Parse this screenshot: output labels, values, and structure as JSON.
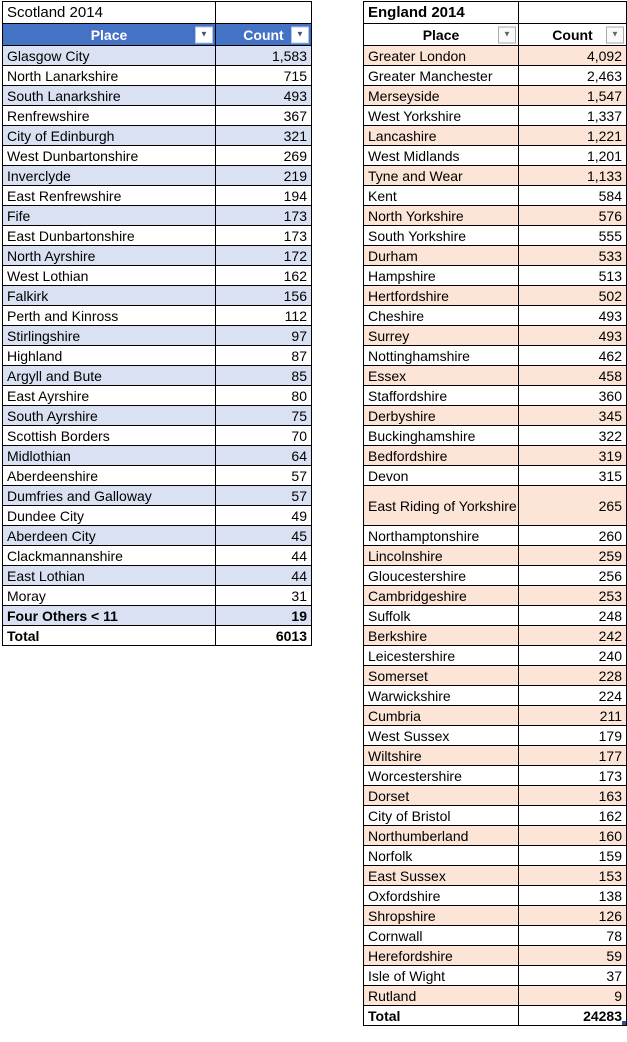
{
  "colors": {
    "scotland_header_bg": "#4472C4",
    "scotland_band": "#D9E1F2",
    "england_band": "#FCE4D6",
    "fill_handle": "#2E5395"
  },
  "icons": {
    "filter_dropdown": "▼"
  },
  "tables": [
    {
      "title": "Scotland 2014",
      "header": {
        "place": "Place",
        "count": "Count"
      },
      "rows": [
        {
          "place": "Glasgow City",
          "count": "1,583"
        },
        {
          "place": "North Lanarkshire",
          "count": "715"
        },
        {
          "place": "South Lanarkshire",
          "count": "493"
        },
        {
          "place": "Renfrewshire",
          "count": "367"
        },
        {
          "place": "City of Edinburgh",
          "count": "321"
        },
        {
          "place": "West Dunbartonshire",
          "count": "269"
        },
        {
          "place": "Inverclyde",
          "count": "219"
        },
        {
          "place": "East Renfrewshire",
          "count": "194"
        },
        {
          "place": "Fife",
          "count": "173"
        },
        {
          "place": "East Dunbartonshire",
          "count": "173"
        },
        {
          "place": "North Ayrshire",
          "count": "172"
        },
        {
          "place": "West Lothian",
          "count": "162"
        },
        {
          "place": "Falkirk",
          "count": "156"
        },
        {
          "place": "Perth and Kinross",
          "count": "112"
        },
        {
          "place": "Stirlingshire",
          "count": "97"
        },
        {
          "place": "Highland",
          "count": "87"
        },
        {
          "place": "Argyll and Bute",
          "count": "85"
        },
        {
          "place": "East Ayrshire",
          "count": "80"
        },
        {
          "place": "South Ayrshire",
          "count": "75"
        },
        {
          "place": "Scottish Borders",
          "count": "70"
        },
        {
          "place": "Midlothian",
          "count": "64"
        },
        {
          "place": "Aberdeenshire",
          "count": "57"
        },
        {
          "place": "Dumfries and Galloway",
          "count": "57"
        },
        {
          "place": "Dundee City",
          "count": "49"
        },
        {
          "place": "Aberdeen City",
          "count": "45"
        },
        {
          "place": "Clackmannanshire",
          "count": "44"
        },
        {
          "place": "East Lothian",
          "count": "44"
        },
        {
          "place": "Moray",
          "count": "31"
        },
        {
          "place": "Four Others < 11",
          "count": "19",
          "bold": true
        }
      ],
      "total": {
        "label": "Total",
        "value": "6013"
      }
    },
    {
      "title": "England 2014",
      "header": {
        "place": "Place",
        "count": "Count"
      },
      "rows": [
        {
          "place": "Greater London",
          "count": "4,092"
        },
        {
          "place": "Greater Manchester",
          "count": "2,463"
        },
        {
          "place": "Merseyside",
          "count": "1,547"
        },
        {
          "place": "West Yorkshire",
          "count": "1,337"
        },
        {
          "place": "Lancashire",
          "count": "1,221"
        },
        {
          "place": "West Midlands",
          "count": "1,201"
        },
        {
          "place": "Tyne and Wear",
          "count": "1,133"
        },
        {
          "place": "Kent",
          "count": "584"
        },
        {
          "place": "North Yorkshire",
          "count": "576"
        },
        {
          "place": "South Yorkshire",
          "count": "555"
        },
        {
          "place": "Durham",
          "count": "533"
        },
        {
          "place": "Hampshire",
          "count": "513"
        },
        {
          "place": "Hertfordshire",
          "count": "502"
        },
        {
          "place": "Cheshire",
          "count": "493"
        },
        {
          "place": "Surrey",
          "count": "493"
        },
        {
          "place": "Nottinghamshire",
          "count": "462"
        },
        {
          "place": "Essex",
          "count": "458"
        },
        {
          "place": "Staffordshire",
          "count": "360"
        },
        {
          "place": "Derbyshire",
          "count": "345"
        },
        {
          "place": "Buckinghamshire",
          "count": "322"
        },
        {
          "place": "Bedfordshire",
          "count": "319"
        },
        {
          "place": "Devon",
          "count": "315"
        },
        {
          "place": "East Riding of Yorkshire",
          "count": "265",
          "tall": true
        },
        {
          "place": "Northamptonshire",
          "count": "260"
        },
        {
          "place": "Lincolnshire",
          "count": "259"
        },
        {
          "place": "Gloucestershire",
          "count": "256"
        },
        {
          "place": "Cambridgeshire",
          "count": "253"
        },
        {
          "place": "Suffolk",
          "count": "248"
        },
        {
          "place": "Berkshire",
          "count": "242"
        },
        {
          "place": "Leicestershire",
          "count": "240"
        },
        {
          "place": "Somerset",
          "count": "228"
        },
        {
          "place": "Warwickshire",
          "count": "224"
        },
        {
          "place": "Cumbria",
          "count": "211"
        },
        {
          "place": "West Sussex",
          "count": "179"
        },
        {
          "place": "Wiltshire",
          "count": "177"
        },
        {
          "place": "Worcestershire",
          "count": "173"
        },
        {
          "place": "Dorset",
          "count": "163"
        },
        {
          "place": "City of Bristol",
          "count": "162"
        },
        {
          "place": "Northumberland",
          "count": "160"
        },
        {
          "place": "Norfolk",
          "count": "159"
        },
        {
          "place": "East Sussex",
          "count": "153"
        },
        {
          "place": "Oxfordshire",
          "count": "138"
        },
        {
          "place": "Shropshire",
          "count": "126"
        },
        {
          "place": "Cornwall",
          "count": "78"
        },
        {
          "place": "Herefordshire",
          "count": "59"
        },
        {
          "place": "Isle of Wight",
          "count": "37"
        },
        {
          "place": "Rutland",
          "count": "9"
        }
      ],
      "total": {
        "label": "Total",
        "value": "24283"
      }
    }
  ]
}
